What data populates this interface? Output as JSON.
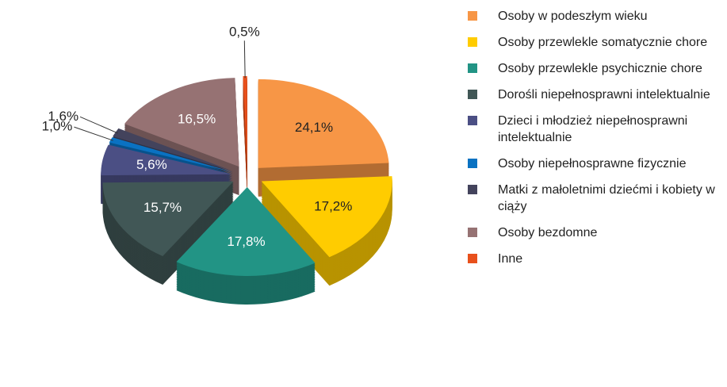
{
  "chart_data": {
    "type": "pie",
    "series": [
      {
        "name": "Osoby w podeszłym wieku",
        "color": "#F79646",
        "values": [
          24.1
        ],
        "value_labels": [
          "24,1%"
        ]
      },
      {
        "name": "Osoby przewlekle somatycznie chore",
        "color": "#FFCC00",
        "values": [
          17.2
        ],
        "value_labels": [
          "17,2%"
        ]
      },
      {
        "name": "Osoby przewlekle psychicznie chore",
        "color": "#229485",
        "values": [
          17.8
        ],
        "value_labels": [
          "17,8%"
        ]
      },
      {
        "name": "Dorośli niepełnosprawni intelektualnie",
        "color": "#415756",
        "values": [
          15.7
        ],
        "value_labels": [
          "15,7%"
        ]
      },
      {
        "name": "Dzieci i młodzież niepełnosprawni intelektualnie",
        "color": "#4B4F84",
        "values": [
          5.6
        ],
        "value_labels": [
          "5,6%"
        ]
      },
      {
        "name": "Osoby niepełnosprawne fizycznie",
        "color": "#0A72C2",
        "values": [
          1.0
        ],
        "value_labels": [
          "1,0%"
        ]
      },
      {
        "name": "Matki z małoletnimi dziećmi i kobiety w ciąży",
        "color": "#43435C",
        "values": [
          1.6
        ],
        "value_labels": [
          "1,6%"
        ]
      },
      {
        "name": "Osoby bezdomne",
        "color": "#967273",
        "values": [
          16.5
        ],
        "value_labels": [
          "16,5%"
        ]
      },
      {
        "name": "Inne",
        "color": "#E8501C",
        "values": [
          0.5
        ],
        "value_labels": [
          "0,5%"
        ]
      }
    ]
  }
}
